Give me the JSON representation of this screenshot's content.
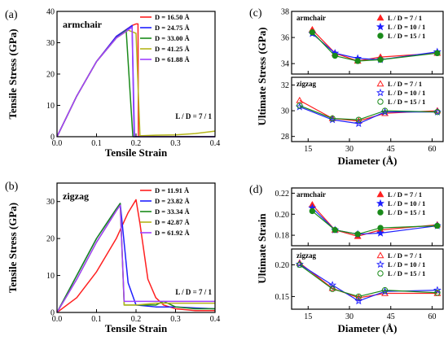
{
  "chart_data": [
    {
      "panel": "(a)",
      "type": "line",
      "title": "armchair",
      "note": "L / D = 7 / 1",
      "xlabel": "Tensile Strain",
      "ylabel": "Tensile Stress (GPa)",
      "xlim": [
        0,
        0.4
      ],
      "ylim": [
        0,
        40
      ],
      "xticks": [
        "0.0",
        "0.1",
        "0.2",
        "0.3",
        "0.4"
      ],
      "yticks": [
        "0",
        "10",
        "20",
        "30",
        "40"
      ],
      "legend_position": "top-right",
      "series": [
        {
          "name": "D = 16.50 Å",
          "color": "#ff2020",
          "x": [
            0,
            0.05,
            0.1,
            0.15,
            0.19,
            0.2,
            0.205,
            0.206,
            0.4
          ],
          "y": [
            0,
            13,
            24,
            32,
            35.5,
            36,
            36,
            0,
            0
          ]
        },
        {
          "name": "D = 24.75 Å",
          "color": "#1f1fff",
          "x": [
            0,
            0.05,
            0.1,
            0.15,
            0.185,
            0.19,
            0.196,
            0.4
          ],
          "y": [
            0,
            13,
            24,
            32,
            35,
            35.5,
            0,
            0
          ]
        },
        {
          "name": "D = 33.00 Å",
          "color": "#1a8a1a",
          "x": [
            0,
            0.05,
            0.1,
            0.15,
            0.17,
            0.175,
            0.192,
            0.4
          ],
          "y": [
            0,
            13,
            24,
            31.5,
            33.5,
            34,
            0,
            0
          ]
        },
        {
          "name": "D = 41.25 Å",
          "color": "#b5b51a",
          "x": [
            0,
            0.05,
            0.1,
            0.15,
            0.18,
            0.2,
            0.21,
            0.25,
            0.3,
            0.35,
            0.4
          ],
          "y": [
            0,
            13,
            24,
            31.5,
            34,
            33,
            0.3,
            0.5,
            0.6,
            1,
            1.8
          ]
        },
        {
          "name": "D = 61.88 Å",
          "color": "#a040ff",
          "x": [
            0,
            0.05,
            0.1,
            0.15,
            0.185,
            0.19,
            0.195,
            0.4
          ],
          "y": [
            0,
            13,
            24,
            31.5,
            34.5,
            35,
            0,
            0
          ]
        }
      ]
    },
    {
      "panel": "(b)",
      "type": "line",
      "title": "zigzag",
      "note": "L / D = 7 / 1",
      "xlabel": "Tensile Strain",
      "ylabel": "Tensile Stress (GPa)",
      "xlim": [
        0,
        0.4
      ],
      "ylim": [
        0,
        35
      ],
      "xticks": [
        "0.0",
        "0.1",
        "0.2",
        "0.3",
        "0.4"
      ],
      "yticks": [
        "0",
        "10",
        "20",
        "30"
      ],
      "legend_position": "top-right",
      "series": [
        {
          "name": "D = 11.91 Å",
          "color": "#ff2020",
          "x": [
            0,
            0.05,
            0.1,
            0.15,
            0.18,
            0.2,
            0.21,
            0.23,
            0.25,
            0.27,
            0.3,
            0.35,
            0.4
          ],
          "y": [
            0,
            4,
            11,
            20,
            27,
            30.5,
            24,
            9,
            4,
            2,
            1,
            0.5,
            0.5
          ]
        },
        {
          "name": "D = 23.82 Å",
          "color": "#1f1fff",
          "x": [
            0,
            0.05,
            0.1,
            0.15,
            0.16,
            0.18,
            0.2,
            0.25,
            0.3,
            0.35,
            0.4
          ],
          "y": [
            0,
            10,
            20,
            28,
            29.5,
            8,
            2,
            1.5,
            1.5,
            1.2,
            1
          ]
        },
        {
          "name": "D = 33.34 Å",
          "color": "#1a8a1a",
          "x": [
            0,
            0.05,
            0.06,
            0.1,
            0.15,
            0.16,
            0.17,
            0.2,
            0.25,
            0.27,
            0.3,
            0.35,
            0.4
          ],
          "y": [
            0,
            10,
            12,
            20,
            28,
            29.5,
            2,
            2,
            2,
            3,
            1.5,
            1,
            1
          ]
        },
        {
          "name": "D = 42.87 Å",
          "color": "#b5b51a",
          "x": [
            0,
            0.05,
            0.1,
            0.15,
            0.16,
            0.17,
            0.2,
            0.25,
            0.3,
            0.35,
            0.4
          ],
          "y": [
            0,
            9,
            19,
            27.5,
            29,
            2,
            2,
            2.5,
            2.5,
            2.5,
            2.5
          ]
        },
        {
          "name": "D = 61.92 Å",
          "color": "#a040ff",
          "x": [
            0,
            0.05,
            0.1,
            0.15,
            0.16,
            0.17,
            0.2,
            0.25,
            0.3,
            0.35,
            0.4
          ],
          "y": [
            0,
            9,
            19,
            27.5,
            29,
            3,
            3,
            3,
            3,
            3,
            3
          ]
        }
      ]
    },
    {
      "panel": "(c)",
      "type": "line",
      "xlabel": "Diameter (Å)",
      "ylabel": "Ultimate Stress (GPa)",
      "xlim": [
        9,
        64
      ],
      "xticks": [
        "15",
        "30",
        "45",
        "60"
      ],
      "subplots": [
        {
          "label": "armchair",
          "ylim": [
            33.2,
            38
          ],
          "yticks": [
            "34",
            "36",
            "38"
          ],
          "marker_fill": "filled",
          "x": [
            16.5,
            24.75,
            33.0,
            41.25,
            61.88
          ],
          "series": [
            {
              "name": "L / D = 7 / 1",
              "color": "#ff2020",
              "marker": "triangle",
              "values": [
                36.6,
                34.8,
                34.2,
                34.5,
                34.8
              ]
            },
            {
              "name": "L / D = 10 / 1",
              "color": "#1f1fff",
              "marker": "star",
              "values": [
                36.3,
                34.8,
                34.4,
                34.3,
                34.9
              ]
            },
            {
              "name": "L / D = 15 / 1",
              "color": "#1a8a1a",
              "marker": "circle",
              "values": [
                36.4,
                34.6,
                34.2,
                34.3,
                34.8
              ]
            }
          ]
        },
        {
          "label": "zigzag",
          "ylim": [
            27.6,
            32.6
          ],
          "yticks": [
            "28",
            "30",
            "32"
          ],
          "marker_fill": "hollow",
          "x": [
            11.91,
            23.82,
            33.34,
            42.87,
            61.92
          ],
          "series": [
            {
              "name": "L / D = 7 / 1",
              "color": "#ff2020",
              "marker": "triangle",
              "values": [
                30.8,
                29.4,
                29.2,
                29.8,
                30.0
              ]
            },
            {
              "name": "L / D = 10 / 1",
              "color": "#1f1fff",
              "marker": "star",
              "values": [
                30.3,
                29.3,
                29.0,
                29.9,
                29.9
              ]
            },
            {
              "name": "L / D = 15 / 1",
              "color": "#1a8a1a",
              "marker": "circle",
              "values": [
                30.4,
                29.4,
                29.3,
                30.0,
                29.9
              ]
            }
          ]
        }
      ]
    },
    {
      "panel": "(d)",
      "type": "line",
      "xlabel": "Diameter (Å)",
      "ylabel": "Ultimate Strain",
      "xlim": [
        9,
        64
      ],
      "xticks": [
        "15",
        "30",
        "45",
        "60"
      ],
      "subplots": [
        {
          "label": "armchair",
          "ylim": [
            0.17,
            0.225
          ],
          "yticks": [
            "0.18",
            "0.20",
            "0.22"
          ],
          "marker_fill": "filled",
          "x": [
            16.5,
            24.75,
            33.0,
            41.25,
            61.88
          ],
          "series": [
            {
              "name": "L / D = 7 / 1",
              "color": "#ff2020",
              "marker": "triangle",
              "values": [
                0.209,
                0.185,
                0.179,
                0.185,
                0.19
              ]
            },
            {
              "name": "L / D = 10 / 1",
              "color": "#1f1fff",
              "marker": "star",
              "values": [
                0.206,
                0.185,
                0.181,
                0.182,
                0.189
              ]
            },
            {
              "name": "L / D = 15 / 1",
              "color": "#1a8a1a",
              "marker": "circle",
              "values": [
                0.203,
                0.185,
                0.181,
                0.187,
                0.189
              ]
            }
          ]
        },
        {
          "label": "zigzag",
          "ylim": [
            0.13,
            0.225
          ],
          "yticks": [
            "0.15",
            "0.20"
          ],
          "marker_fill": "hollow",
          "x": [
            11.91,
            23.82,
            33.34,
            42.87,
            61.92
          ],
          "series": [
            {
              "name": "L / D = 7 / 1",
              "color": "#ff2020",
              "marker": "triangle",
              "values": [
                0.203,
                0.163,
                0.148,
                0.155,
                0.155
              ]
            },
            {
              "name": "L / D = 10 / 1",
              "color": "#1f1fff",
              "marker": "star",
              "values": [
                0.201,
                0.168,
                0.143,
                0.158,
                0.16
              ]
            },
            {
              "name": "L / D = 15 / 1",
              "color": "#1a8a1a",
              "marker": "circle",
              "values": [
                0.2,
                0.162,
                0.15,
                0.16,
                0.156
              ]
            }
          ]
        }
      ]
    }
  ]
}
